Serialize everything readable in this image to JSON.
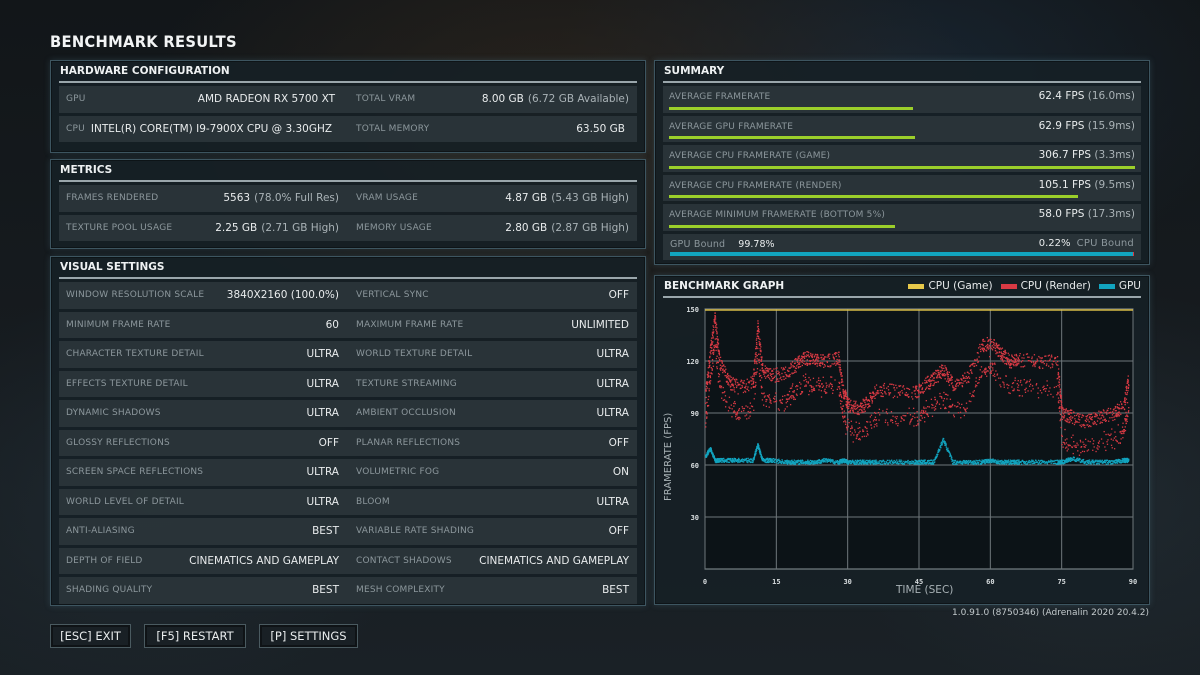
{
  "title": "BENCHMARK RESULTS",
  "hardware": {
    "header": "HARDWARE CONFIGURATION",
    "rows": [
      {
        "l_label": "GPU",
        "l_value": "AMD RADEON RX 5700 XT",
        "l_dim": "",
        "r_label": "TOTAL VRAM",
        "r_value": "8.00 GB",
        "r_dim": "(6.72 GB Available)"
      },
      {
        "l_label": "CPU",
        "l_value": "INTEL(R) CORE(TM) I9-7900X CPU @ 3.30GHZ",
        "l_dim": "",
        "r_label": "TOTAL MEMORY",
        "r_value": "63.50 GB",
        "r_dim": ""
      }
    ]
  },
  "metrics": {
    "header": "METRICS",
    "rows": [
      {
        "l_label": "FRAMES RENDERED",
        "l_value": "5563",
        "l_dim": "(78.0% Full Res)",
        "r_label": "VRAM USAGE",
        "r_value": "4.87 GB",
        "r_dim": "(5.43 GB High)"
      },
      {
        "l_label": "TEXTURE POOL USAGE",
        "l_value": "2.25 GB",
        "l_dim": "(2.71 GB High)",
        "r_label": "MEMORY USAGE",
        "r_value": "2.80 GB",
        "r_dim": "(2.87 GB High)"
      }
    ]
  },
  "visual": {
    "header": "VISUAL SETTINGS",
    "rows": [
      {
        "l_label": "WINDOW RESOLUTION SCALE",
        "l_value": "3840X2160 (100.0%)",
        "r_label": "VERTICAL SYNC",
        "r_value": "OFF"
      },
      {
        "l_label": "MINIMUM FRAME RATE",
        "l_value": "60",
        "r_label": "MAXIMUM FRAME RATE",
        "r_value": "UNLIMITED"
      },
      {
        "l_label": "CHARACTER TEXTURE DETAIL",
        "l_value": "ULTRA",
        "r_label": "WORLD TEXTURE DETAIL",
        "r_value": "ULTRA"
      },
      {
        "l_label": "EFFECTS TEXTURE DETAIL",
        "l_value": "ULTRA",
        "r_label": "TEXTURE STREAMING",
        "r_value": "ULTRA"
      },
      {
        "l_label": "DYNAMIC SHADOWS",
        "l_value": "ULTRA",
        "r_label": "AMBIENT OCCLUSION",
        "r_value": "ULTRA"
      },
      {
        "l_label": "GLOSSY REFLECTIONS",
        "l_value": "OFF",
        "r_label": "PLANAR REFLECTIONS",
        "r_value": "OFF"
      },
      {
        "l_label": "SCREEN SPACE REFLECTIONS",
        "l_value": "ULTRA",
        "r_label": "VOLUMETRIC FOG",
        "r_value": "ON"
      },
      {
        "l_label": "WORLD LEVEL OF DETAIL",
        "l_value": "ULTRA",
        "r_label": "BLOOM",
        "r_value": "ULTRA"
      },
      {
        "l_label": "ANTI-ALIASING",
        "l_value": "BEST",
        "r_label": "VARIABLE RATE SHADING",
        "r_value": "OFF"
      },
      {
        "l_label": "DEPTH OF FIELD",
        "l_value": "CINEMATICS AND GAMEPLAY",
        "r_label": "CONTACT SHADOWS",
        "r_value": "CINEMATICS AND GAMEPLAY"
      },
      {
        "l_label": "SHADING QUALITY",
        "l_value": "BEST",
        "r_label": "MESH COMPLEXITY",
        "r_value": "BEST"
      }
    ]
  },
  "summary": {
    "header": "SUMMARY",
    "bar_color": "#9bcf2a",
    "rows": [
      {
        "label": "AVERAGE FRAMERATE",
        "value": "62.4 FPS",
        "dim": "(16.0ms)",
        "bar_pct": 52.3
      },
      {
        "label": "AVERAGE GPU FRAMERATE",
        "value": "62.9 FPS",
        "dim": "(15.9ms)",
        "bar_pct": 52.7
      },
      {
        "label": "AVERAGE CPU FRAMERATE (GAME)",
        "value": "306.7 FPS",
        "dim": "(3.3ms)",
        "bar_pct": 100
      },
      {
        "label": "AVERAGE CPU FRAMERATE (RENDER)",
        "value": "105.1 FPS",
        "dim": "(9.5ms)",
        "bar_pct": 87.7
      },
      {
        "label": "AVERAGE MINIMUM FRAMERATE (BOTTOM 5%)",
        "value": "58.0 FPS",
        "dim": "(17.3ms)",
        "bar_pct": 48.4
      }
    ],
    "bound": {
      "gpu_label": "GPU Bound",
      "gpu_pct": "99.78%",
      "cpu_pct": "0.22%",
      "cpu_label": "CPU Bound",
      "gpu_color": "#12a4bf",
      "cpu_color": "#d93a44"
    }
  },
  "graph": {
    "header": "BENCHMARK GRAPH",
    "legend": [
      {
        "label": "CPU (Game)",
        "color": "#e6c84a"
      },
      {
        "label": "CPU (Render)",
        "color": "#d93a44"
      },
      {
        "label": "GPU",
        "color": "#12a4bf"
      }
    ],
    "ylabel": "FRAMERATE (FPS)",
    "xlabel": "TIME (SEC)",
    "yticks": [
      "150",
      "120",
      "90",
      "60",
      "30"
    ],
    "xticks": [
      "0",
      "15",
      "30",
      "45",
      "60",
      "75",
      "90"
    ]
  },
  "chart_data": {
    "type": "scatter",
    "title": "BENCHMARK GRAPH",
    "xlabel": "TIME (SEC)",
    "ylabel": "FRAMERATE (FPS)",
    "xlim": [
      0,
      90
    ],
    "ylim": [
      0,
      150
    ],
    "grid": true,
    "legend_position": "top-right",
    "x": [
      0,
      1,
      2,
      3,
      5,
      7,
      10,
      11,
      12,
      14,
      17,
      19,
      21,
      23,
      25,
      28,
      29,
      30,
      32,
      34,
      36,
      40,
      44,
      46,
      48,
      50,
      52,
      55,
      58,
      60,
      62,
      64,
      66,
      70,
      74,
      75,
      77,
      80,
      83,
      86,
      88,
      89
    ],
    "series": [
      {
        "name": "CPU (Game)",
        "color": "#e6c84a",
        "values": [
          150,
          150,
          150,
          150,
          150,
          150,
          150,
          150,
          150,
          150,
          150,
          150,
          150,
          150,
          150,
          150,
          150,
          150,
          150,
          150,
          150,
          150,
          150,
          150,
          150,
          150,
          150,
          150,
          150,
          150,
          150,
          150,
          150,
          150,
          150,
          150,
          150,
          150,
          150,
          150,
          150,
          150
        ]
      },
      {
        "name": "CPU (Render)",
        "color": "#d93a44",
        "values": [
          100,
          125,
          145,
          120,
          108,
          105,
          108,
          140,
          115,
          112,
          113,
          118,
          122,
          121,
          120,
          122,
          103,
          95,
          93,
          96,
          104,
          103,
          102,
          106,
          110,
          115,
          107,
          110,
          128,
          132,
          125,
          120,
          121,
          120,
          120,
          90,
          88,
          85,
          88,
          90,
          95,
          110
        ]
      },
      {
        "name": "GPU",
        "color": "#12a4bf",
        "values": [
          65,
          70,
          63,
          63,
          63,
          63,
          63,
          72,
          63,
          63,
          62,
          62,
          62,
          62,
          63,
          62,
          63,
          62,
          62,
          62,
          62,
          62,
          62,
          62,
          62,
          75,
          62,
          62,
          62,
          63,
          62,
          62,
          62,
          62,
          62,
          62,
          64,
          62,
          62,
          62,
          63,
          63
        ]
      }
    ]
  },
  "buttons": [
    {
      "label": "[ESC] EXIT"
    },
    {
      "label": "[F5] RESTART"
    },
    {
      "label": "[P] SETTINGS"
    }
  ],
  "version": "1.0.91.0 (8750346) (Adrenalin 2020 20.4.2)"
}
